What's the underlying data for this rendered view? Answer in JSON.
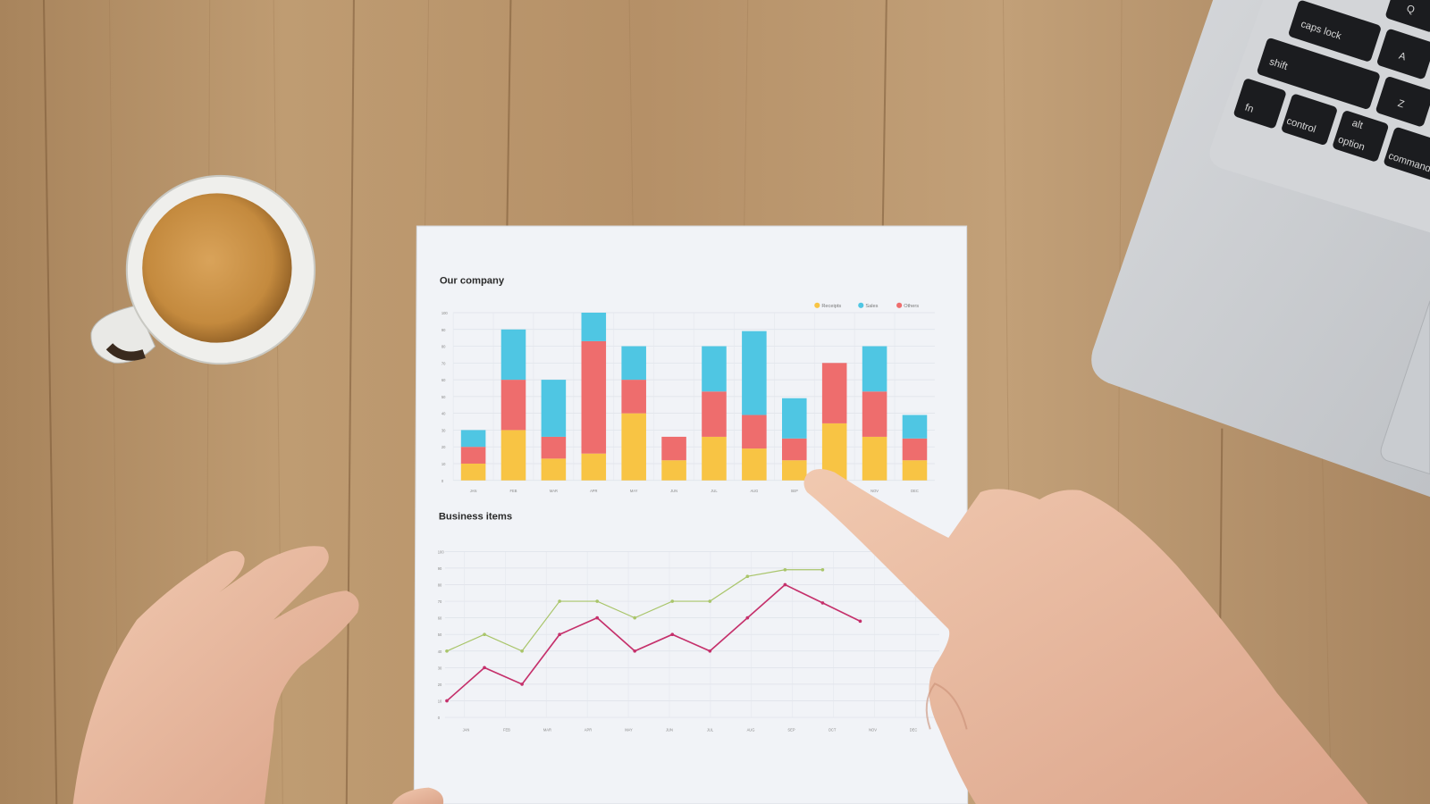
{
  "colors": {
    "wood": "#b8946a",
    "paper": "#f1f3f7",
    "receipts": "#f8c444",
    "sales": "#4fc6e3",
    "others": "#ee6d6d",
    "line_green": "#a9c56a",
    "line_pink": "#c5306b"
  },
  "laptop": {
    "keys": [
      "Q",
      "caps lock",
      "A",
      "shift",
      "Z",
      "fn",
      "control",
      "alt",
      "option",
      "command"
    ]
  },
  "chart_data": [
    {
      "type": "bar",
      "stacked": true,
      "title": "Our company",
      "categories": [
        "JAN",
        "FEB",
        "MAR",
        "APR",
        "MAY",
        "JUN",
        "JUL",
        "AUG",
        "SEP",
        "OCT",
        "NOV",
        "DEC"
      ],
      "yticks": [
        0,
        10,
        20,
        30,
        40,
        50,
        60,
        70,
        80,
        90,
        100
      ],
      "ylim": [
        0,
        100
      ],
      "grid": true,
      "legend": "top-right",
      "series": [
        {
          "name": "Receipts",
          "values": [
            10,
            30,
            13,
            16,
            40,
            12,
            26,
            19,
            12,
            34,
            26,
            12
          ]
        },
        {
          "name": "Sales",
          "values": [
            10,
            30,
            34,
            17,
            20,
            0,
            27,
            50,
            24,
            0,
            27,
            14
          ]
        },
        {
          "name": "Others",
          "values": [
            10,
            30,
            13,
            67,
            20,
            14,
            27,
            20,
            13,
            36,
            27,
            13
          ]
        }
      ]
    },
    {
      "type": "line",
      "title": "Business items",
      "categories": [
        "JAN",
        "FEB",
        "MAR",
        "APR",
        "MAY",
        "JUN",
        "JUL",
        "AUG",
        "SEP",
        "OCT",
        "NOV",
        "DEC"
      ],
      "yticks": [
        0,
        10,
        20,
        30,
        40,
        50,
        60,
        70,
        80,
        90,
        100
      ],
      "ylim": [
        0,
        100
      ],
      "grid": true,
      "series": [
        {
          "values": [
            40,
            50,
            40,
            70,
            70,
            60,
            70,
            70,
            85,
            89,
            89,
            null
          ]
        },
        {
          "values": [
            10,
            30,
            20,
            50,
            60,
            40,
            50,
            40,
            60,
            80,
            69,
            58
          ]
        }
      ]
    }
  ]
}
